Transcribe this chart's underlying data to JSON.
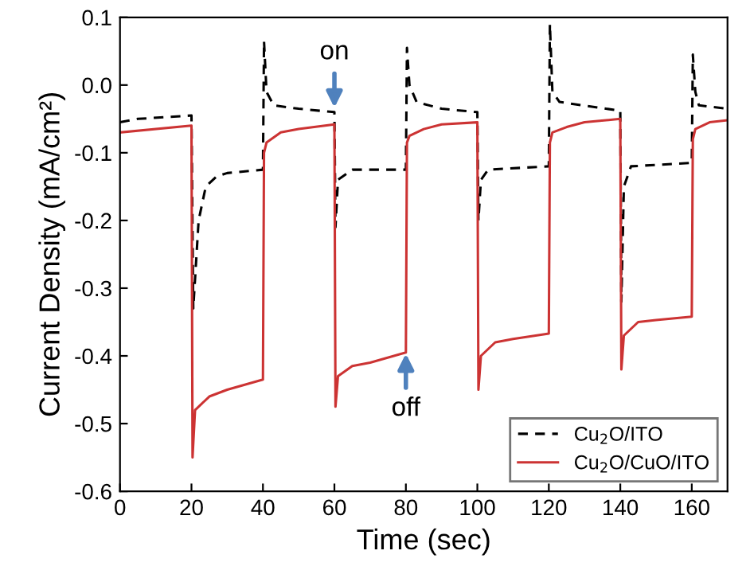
{
  "chart_data": {
    "type": "line",
    "xlabel": "Time (sec)",
    "ylabel": "Current Density (mA/cm²)",
    "xlim": [
      0,
      170
    ],
    "ylim": [
      -0.6,
      0.1
    ],
    "xticks": [
      0,
      20,
      40,
      60,
      80,
      100,
      120,
      140,
      160
    ],
    "yticks": [
      {
        "value": -0.6,
        "label": "-0.6"
      },
      {
        "value": -0.5,
        "label": "-0.5"
      },
      {
        "value": -0.4,
        "label": "-0.4"
      },
      {
        "value": -0.3,
        "label": "-0.3"
      },
      {
        "value": -0.2,
        "label": "-0.2"
      },
      {
        "value": -0.1,
        "label": "-0.1"
      },
      {
        "value": 0,
        "label": "0.0"
      },
      {
        "value": 0.1,
        "label": "0.1"
      }
    ],
    "grid": false,
    "legend": "bottom right",
    "marker": "none",
    "annotations": [
      {
        "text": "on",
        "x": 60,
        "y": -0.04
      },
      {
        "text": "off",
        "x": 80,
        "y": -0.39
      }
    ],
    "series": [
      {
        "name": "Cu$_{2}$O/ITO",
        "color": "#000000",
        "line_style": "dashed",
        "x": [
          0,
          5,
          20,
          20.5,
          22,
          24,
          27,
          30,
          40,
          40.3,
          41,
          43,
          50,
          60,
          60.3,
          61,
          65,
          80,
          80.3,
          81,
          83,
          90,
          100,
          100.3,
          101,
          103,
          120,
          120.3,
          121,
          123,
          140,
          140.3,
          141,
          143,
          160,
          160.3,
          161,
          162,
          170
        ],
        "values": [
          -0.055,
          -0.05,
          -0.045,
          -0.33,
          -0.2,
          -0.15,
          -0.135,
          -0.13,
          -0.125,
          0.065,
          -0.01,
          -0.03,
          -0.035,
          -0.04,
          -0.21,
          -0.14,
          -0.125,
          -0.125,
          0.055,
          0.0,
          -0.025,
          -0.035,
          -0.04,
          -0.2,
          -0.14,
          -0.125,
          -0.12,
          0.09,
          -0.01,
          -0.025,
          -0.038,
          -0.32,
          -0.15,
          -0.12,
          -0.115,
          0.045,
          -0.01,
          -0.03,
          -0.035
        ]
      },
      {
        "name": "Cu$_{2}$O/CuO/ITO",
        "color": "#cc3333",
        "line_style": "solid",
        "x": [
          0,
          20,
          20.3,
          21,
          25,
          30,
          40,
          40.3,
          41,
          45,
          50,
          60,
          60.3,
          61,
          65,
          70,
          80,
          80.3,
          81,
          85,
          90,
          100,
          100.3,
          101,
          105,
          110,
          120,
          120.3,
          121,
          125,
          130,
          140,
          140.3,
          141,
          145,
          150,
          160,
          160.3,
          161,
          165,
          170
        ],
        "values": [
          -0.07,
          -0.06,
          -0.55,
          -0.48,
          -0.46,
          -0.45,
          -0.435,
          -0.1,
          -0.085,
          -0.07,
          -0.065,
          -0.058,
          -0.475,
          -0.43,
          -0.415,
          -0.41,
          -0.395,
          -0.085,
          -0.075,
          -0.065,
          -0.058,
          -0.055,
          -0.45,
          -0.4,
          -0.38,
          -0.375,
          -0.367,
          -0.085,
          -0.07,
          -0.062,
          -0.055,
          -0.05,
          -0.42,
          -0.37,
          -0.35,
          -0.347,
          -0.342,
          -0.08,
          -0.065,
          -0.055,
          -0.052
        ]
      }
    ]
  }
}
